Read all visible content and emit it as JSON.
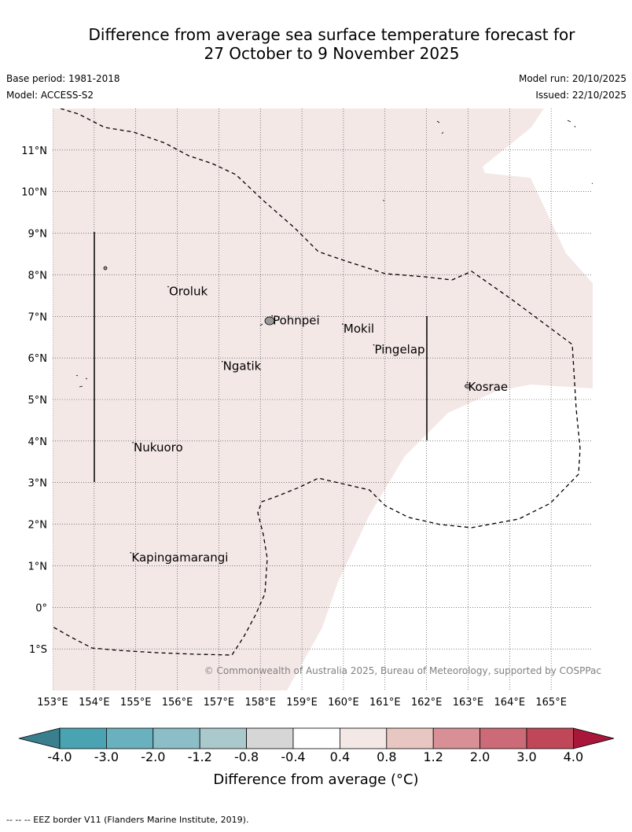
{
  "title": {
    "line1": "Difference from average sea surface temperature forecast for",
    "line2": "27 October to 9 November 2025"
  },
  "meta": {
    "base_period": "Base period: 1981-2018",
    "model": "Model: ACCESS-S2",
    "model_run": "Model run: 20/10/2025",
    "issued": "Issued: 22/10/2025"
  },
  "map": {
    "lon_range": [
      153,
      166
    ],
    "lat_range": [
      -2,
      12
    ],
    "lon_ticks": [
      "153°E",
      "154°E",
      "155°E",
      "156°E",
      "157°E",
      "158°E",
      "159°E",
      "160°E",
      "161°E",
      "162°E",
      "163°E",
      "164°E",
      "165°E"
    ],
    "lat_ticks": [
      "11°N",
      "10°N",
      "9°N",
      "8°N",
      "7°N",
      "6°N",
      "5°N",
      "4°N",
      "3°N",
      "2°N",
      "1°N",
      "0°",
      "1°S"
    ],
    "region_color": "#f4e8e7",
    "land_color": "#999999",
    "places": [
      {
        "name": "Oroluk",
        "lon": 155.8,
        "lat": 7.6
      },
      {
        "name": "Pohnpei",
        "lon": 158.3,
        "lat": 6.9
      },
      {
        "name": "Mokil",
        "lon": 160.0,
        "lat": 6.7
      },
      {
        "name": "Pingelap",
        "lon": 160.75,
        "lat": 6.2
      },
      {
        "name": "Ngatik",
        "lon": 157.1,
        "lat": 5.8
      },
      {
        "name": "Kosrae",
        "lon": 163.0,
        "lat": 5.3
      },
      {
        "name": "Nukuoro",
        "lon": 154.95,
        "lat": 3.85
      },
      {
        "name": "Kapingamarangi",
        "lon": 154.9,
        "lat": 1.2
      }
    ],
    "copyright": "© Commonwealth of Australia 2025, Bureau of Meteorology, supported by COSPPac"
  },
  "colorbar": {
    "label": "Difference from average (°C)",
    "ticks": [
      "-4.0",
      "-3.0",
      "-2.0",
      "-1.2",
      "-0.8",
      "-0.4",
      "0.4",
      "0.8",
      "1.2",
      "2.0",
      "3.0",
      "4.0"
    ],
    "colors": [
      "#4aa3b3",
      "#6ab1bf",
      "#8cbec8",
      "#a9c9cd",
      "#d6d6d6",
      "#ffffff",
      "#f4e8e7",
      "#e8c7c2",
      "#d88f96",
      "#cc6b77",
      "#c04758"
    ],
    "under_color": "#3a7f8e",
    "over_color": "#a8173a"
  },
  "footnote": "-- -- -- EEZ border V11 (Flanders Marine Institute, 2019)."
}
